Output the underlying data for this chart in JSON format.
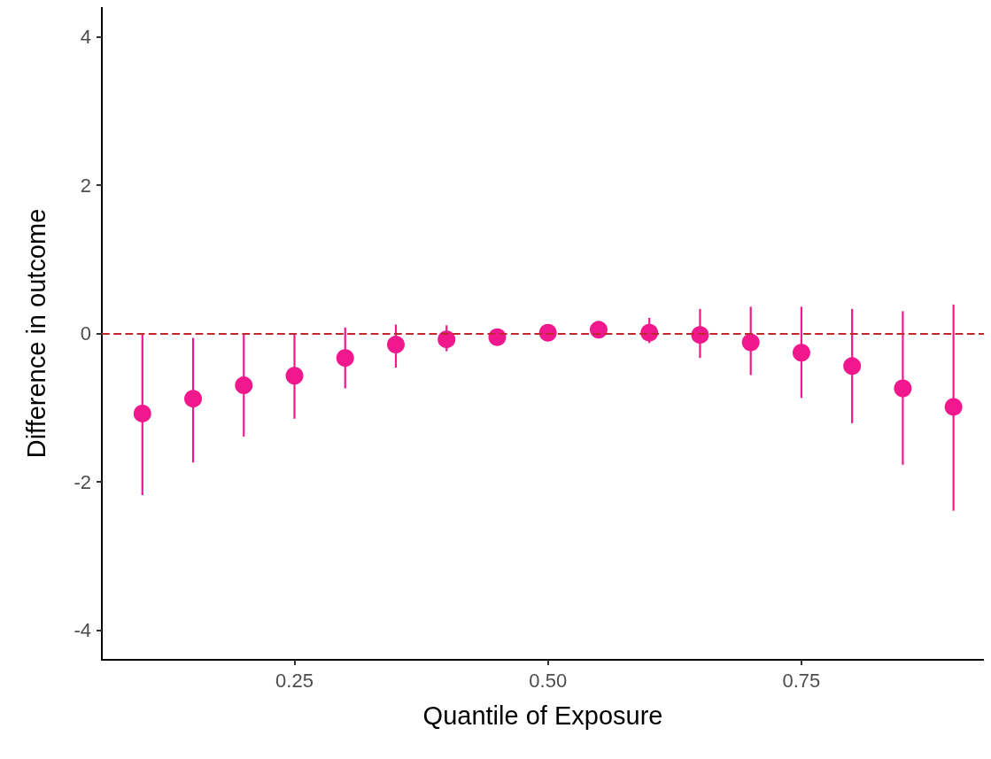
{
  "chart_data": {
    "type": "scatter",
    "xlabel": "Quantile of Exposure",
    "ylabel": "Difference in outcome",
    "x": [
      0.1,
      0.15,
      0.2,
      0.25,
      0.3,
      0.35,
      0.4,
      0.45,
      0.5,
      0.55,
      0.6,
      0.65,
      0.7,
      0.75,
      0.8,
      0.85,
      0.9
    ],
    "series": [
      {
        "color": "#f0188c",
        "values": [
          -1.08,
          -0.88,
          -0.7,
          -0.57,
          -0.33,
          -0.15,
          -0.08,
          -0.05,
          0.01,
          0.05,
          0.01,
          -0.02,
          -0.12,
          -0.26,
          -0.44,
          -0.74,
          -0.99
        ],
        "errors": [
          [
            -2.18,
            0
          ],
          [
            -1.74,
            -0.06
          ],
          [
            -1.39,
            0
          ],
          [
            -1.15,
            -0.01
          ],
          [
            -0.74,
            0.08
          ],
          [
            -0.46,
            0.12
          ],
          [
            -0.24,
            0.11
          ],
          [
            -0.15,
            0.06
          ],
          [
            -0.1,
            0.11
          ],
          [
            -0.06,
            0.14
          ],
          [
            -0.13,
            0.21
          ],
          [
            -0.33,
            0.33
          ],
          [
            -0.56,
            0.36
          ],
          [
            -0.87,
            0.36
          ],
          [
            -1.21,
            0.33
          ],
          [
            -1.77,
            0.3
          ],
          [
            -2.39,
            0.39
          ]
        ]
      }
    ],
    "xlim": [
      0.06,
      0.93
    ],
    "xticks": [
      0.25,
      {
        "value": 0.5,
        "label": "0.50"
      },
      0.75
    ],
    "ylim": [
      -4.4,
      4.4
    ],
    "yticks": [
      -4,
      -2,
      0,
      2,
      4
    ],
    "ref_lines": [
      {
        "axis": "y",
        "value": 0,
        "color": "#c0282d",
        "line_style": "dashed"
      }
    ],
    "grid": false,
    "marker": "circle"
  }
}
